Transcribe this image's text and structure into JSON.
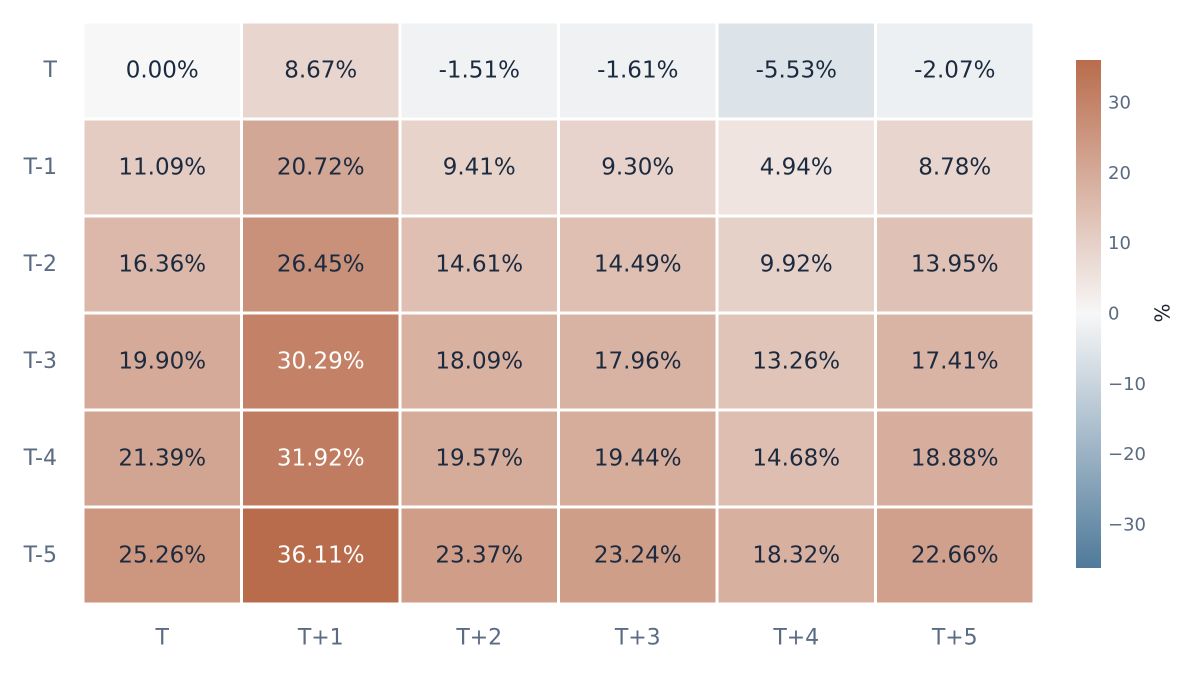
{
  "chart_data": {
    "type": "heatmap",
    "title": "",
    "xlabel": "",
    "ylabel": "",
    "x_categories": [
      "T",
      "T+1",
      "T+2",
      "T+3",
      "T+4",
      "T+5"
    ],
    "y_categories": [
      "T",
      "T-1",
      "T-2",
      "T-3",
      "T-4",
      "T-5"
    ],
    "values": [
      [
        0.0,
        8.67,
        -1.51,
        -1.61,
        -5.53,
        -2.07
      ],
      [
        11.09,
        20.72,
        9.41,
        9.3,
        4.94,
        8.78
      ],
      [
        16.36,
        26.45,
        14.61,
        14.49,
        9.92,
        13.95
      ],
      [
        19.9,
        30.29,
        18.09,
        17.96,
        13.26,
        17.41
      ],
      [
        21.39,
        31.92,
        19.57,
        19.44,
        14.68,
        18.88
      ],
      [
        25.26,
        36.11,
        23.37,
        23.24,
        18.32,
        22.66
      ]
    ],
    "cell_labels": [
      [
        "0.00%",
        "8.67%",
        "-1.51%",
        "-1.61%",
        "-5.53%",
        "-2.07%"
      ],
      [
        "11.09%",
        "20.72%",
        "9.41%",
        "9.30%",
        "4.94%",
        "8.78%"
      ],
      [
        "16.36%",
        "26.45%",
        "14.61%",
        "14.49%",
        "9.92%",
        "13.95%"
      ],
      [
        "19.90%",
        "30.29%",
        "18.09%",
        "17.96%",
        "13.26%",
        "17.41%"
      ],
      [
        "21.39%",
        "31.92%",
        "19.57%",
        "19.44%",
        "14.68%",
        "18.88%"
      ],
      [
        "25.26%",
        "36.11%",
        "23.37%",
        "23.24%",
        "18.32%",
        "22.66%"
      ]
    ],
    "colorscale": {
      "range": [
        -36.11,
        36.11
      ],
      "low_color": "#4f7a9a",
      "mid_color": "#f7f7f7",
      "high_color": "#b96c4c"
    },
    "colorbar": {
      "title": "%",
      "ticks": [
        30,
        20,
        10,
        0,
        -10,
        -20,
        -30
      ],
      "tick_labels": [
        "30",
        "20",
        "10",
        "0",
        "−10",
        "−20",
        "−30"
      ]
    },
    "text_colors": {
      "dark": "#1b2a3e",
      "light": "#ffffff"
    }
  }
}
